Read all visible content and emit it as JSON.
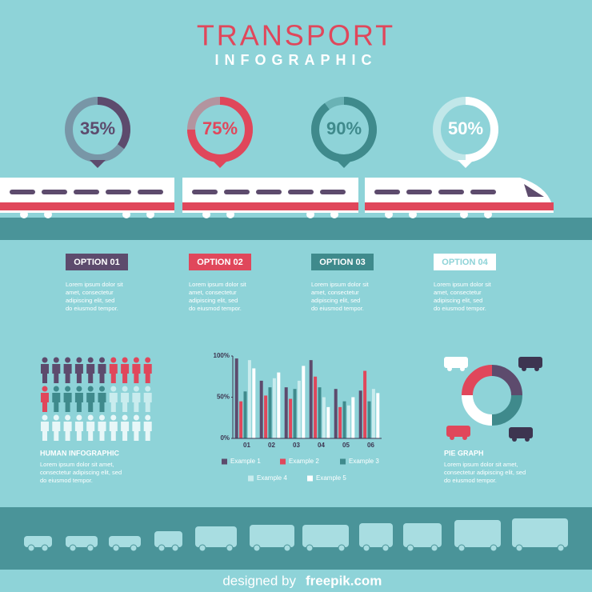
{
  "header": {
    "title": "TRANSPORT",
    "subtitle": "INFOGRAPHIC"
  },
  "chart_data": [
    {
      "type": "gauge",
      "values": [
        35,
        75,
        90,
        50
      ],
      "value_labels": [
        "35%",
        "75%",
        "90%",
        "50%"
      ],
      "colors": [
        "#5d4b6d",
        "#e0475b",
        "#3f8a8c",
        "#ffffff"
      ],
      "ylim": [
        0,
        100
      ]
    },
    {
      "type": "bar",
      "categories": [
        "01",
        "02",
        "03",
        "04",
        "05",
        "06"
      ],
      "ylim": [
        0,
        100
      ],
      "yticks": [
        {
          "value": 0,
          "label": "0%"
        },
        {
          "value": 50,
          "label": "50%"
        },
        {
          "value": 100,
          "label": "100%"
        }
      ],
      "series": [
        {
          "name": "Example 1",
          "color": "#5d4b6d",
          "values": [
            97,
            70,
            62,
            95,
            60,
            58
          ]
        },
        {
          "name": "Example 2",
          "color": "#e0475b",
          "values": [
            45,
            52,
            48,
            75,
            38,
            82
          ]
        },
        {
          "name": "Example 3",
          "color": "#3f8a8c",
          "values": [
            57,
            62,
            60,
            62,
            45,
            45
          ]
        },
        {
          "name": "Example 4",
          "color": "#c9ecee",
          "values": [
            95,
            73,
            70,
            50,
            40,
            60
          ]
        },
        {
          "name": "Example 5",
          "color": "#ffffff",
          "values": [
            85,
            80,
            88,
            38,
            50,
            55
          ]
        }
      ]
    },
    {
      "type": "pie",
      "title": "PIE GRAPH",
      "text": "Lorem ipsum dolor sit amet, consectetur adipiscing elit, sed do eiusmod tempor.",
      "values": [
        25,
        25,
        25,
        25
      ],
      "colors": [
        "#5d4b6d",
        "#3f8a8c",
        "#ffffff",
        "#e0475b"
      ]
    }
  ],
  "options": [
    {
      "label": "OPTION 01",
      "text": "Lorem ipsum dolor sit amet, consectetur adipiscing elit, sed do eiusmod tempor."
    },
    {
      "label": "OPTION 02",
      "text": "Lorem ipsum dolor sit amet, consectetur adipiscing elit, sed do eiusmod tempor."
    },
    {
      "label": "OPTION 03",
      "text": "Lorem ipsum dolor sit amet, consectetur adipiscing elit, sed do eiusmod tempor."
    },
    {
      "label": "OPTION 04",
      "text": "Lorem ipsum dolor sit amet, consectetur adipiscing elit, sed do eiusmod tempor."
    }
  ],
  "human": {
    "title": "HUMAN INFOGRAPHIC",
    "text": "Lorem ipsum dolor sit amet, consectetur adipiscing elit, sed do eiusmod tempor."
  },
  "footer": {
    "credit": "designed by",
    "brand": "freepik.com"
  }
}
